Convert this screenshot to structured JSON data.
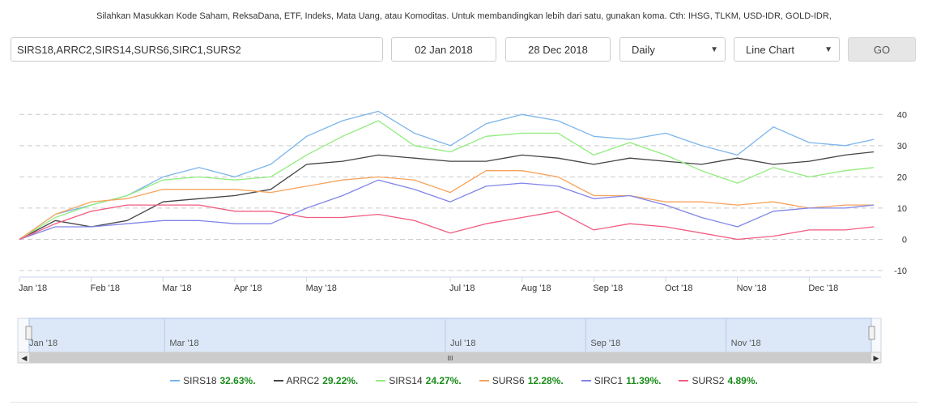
{
  "form": {
    "instructions": "Silahkan Masukkan Kode Saham, ReksaDana, ETF, Indeks, Mata Uang, atau Komoditas. Untuk membandingkan lebih dari satu, gunakan koma. Cth: IHSG, TLKM, USD-IDR, GOLD-IDR,",
    "tickers_value": "SIRS18,ARRC2,SIRS14,SURS6,SIRC1,SURS2",
    "date_from": "02 Jan 2018",
    "date_to": "28 Dec 2018",
    "period_selected": "Daily",
    "chart_type_selected": "Line Chart",
    "go_label": "GO"
  },
  "navigator": {
    "labels": [
      "Jan '18",
      "Mar '18",
      "Jul '18",
      "Sep '18",
      "Nov '18"
    ],
    "scrollbar_grip": "III"
  },
  "chart_data": {
    "type": "line",
    "title": "",
    "xlabel": "",
    "ylabel": "",
    "ylim": [
      -10,
      45
    ],
    "y_ticks": [
      40,
      30,
      20,
      10,
      0,
      -10
    ],
    "x_tick_labels": [
      "Jan '18",
      "Feb '18",
      "Mar '18",
      "Apr '18",
      "May '18",
      "Jul '18",
      "Aug '18",
      "Sep '18",
      "Oct '18",
      "Nov '18",
      "Dec '18"
    ],
    "x_tick_months": [
      0,
      1,
      2,
      3,
      4,
      6,
      7,
      8,
      9,
      10,
      11
    ],
    "grid": true,
    "x_months": [
      0,
      0.5,
      1,
      1.5,
      2,
      2.5,
      3,
      3.5,
      4,
      4.5,
      5,
      5.5,
      6,
      6.5,
      7,
      7.5,
      8,
      8.5,
      9,
      9.5,
      10,
      10.5,
      11,
      11.5,
      11.9
    ],
    "series": [
      {
        "name": "SIRS18",
        "color": "#7cb5ec",
        "return_label": "32.63%.",
        "values": [
          0,
          8,
          11,
          14,
          20,
          23,
          20,
          24,
          33,
          38,
          41,
          34,
          30,
          37,
          40,
          38,
          33,
          32,
          34,
          30,
          27,
          36,
          31,
          30,
          32
        ]
      },
      {
        "name": "ARRC2",
        "color": "#434348",
        "return_label": "29.22%.",
        "values": [
          0,
          6,
          4,
          6,
          12,
          13,
          14,
          16,
          24,
          25,
          27,
          26,
          25,
          25,
          27,
          26,
          24,
          26,
          25,
          24,
          26,
          24,
          25,
          27,
          28
        ]
      },
      {
        "name": "SIRS14",
        "color": "#90ed7d",
        "return_label": "24.27%.",
        "values": [
          0,
          7,
          11,
          14,
          19,
          20,
          19,
          20,
          27,
          33,
          38,
          30,
          28,
          33,
          34,
          34,
          27,
          31,
          27,
          22,
          18,
          23,
          20,
          22,
          23
        ]
      },
      {
        "name": "SURS6",
        "color": "#f7a35c",
        "return_label": "12.28%.",
        "values": [
          0,
          8,
          12,
          13,
          16,
          16,
          16,
          15,
          17,
          19,
          20,
          19,
          15,
          22,
          22,
          20,
          14,
          14,
          12,
          12,
          11,
          12,
          10,
          11,
          11
        ]
      },
      {
        "name": "SIRC1",
        "color": "#8085e9",
        "return_label": "11.39%.",
        "values": [
          0,
          4,
          4,
          5,
          6,
          6,
          5,
          5,
          10,
          14,
          19,
          16,
          12,
          17,
          18,
          17,
          13,
          14,
          11,
          7,
          4,
          9,
          10,
          10,
          11
        ]
      },
      {
        "name": "SURS2",
        "color": "#f15c80",
        "return_label": "4.89%.",
        "values": [
          0,
          5,
          9,
          11,
          11,
          11,
          9,
          9,
          7,
          7,
          8,
          6,
          2,
          5,
          7,
          9,
          3,
          5,
          4,
          2,
          0,
          1,
          3,
          3,
          4
        ]
      }
    ]
  }
}
